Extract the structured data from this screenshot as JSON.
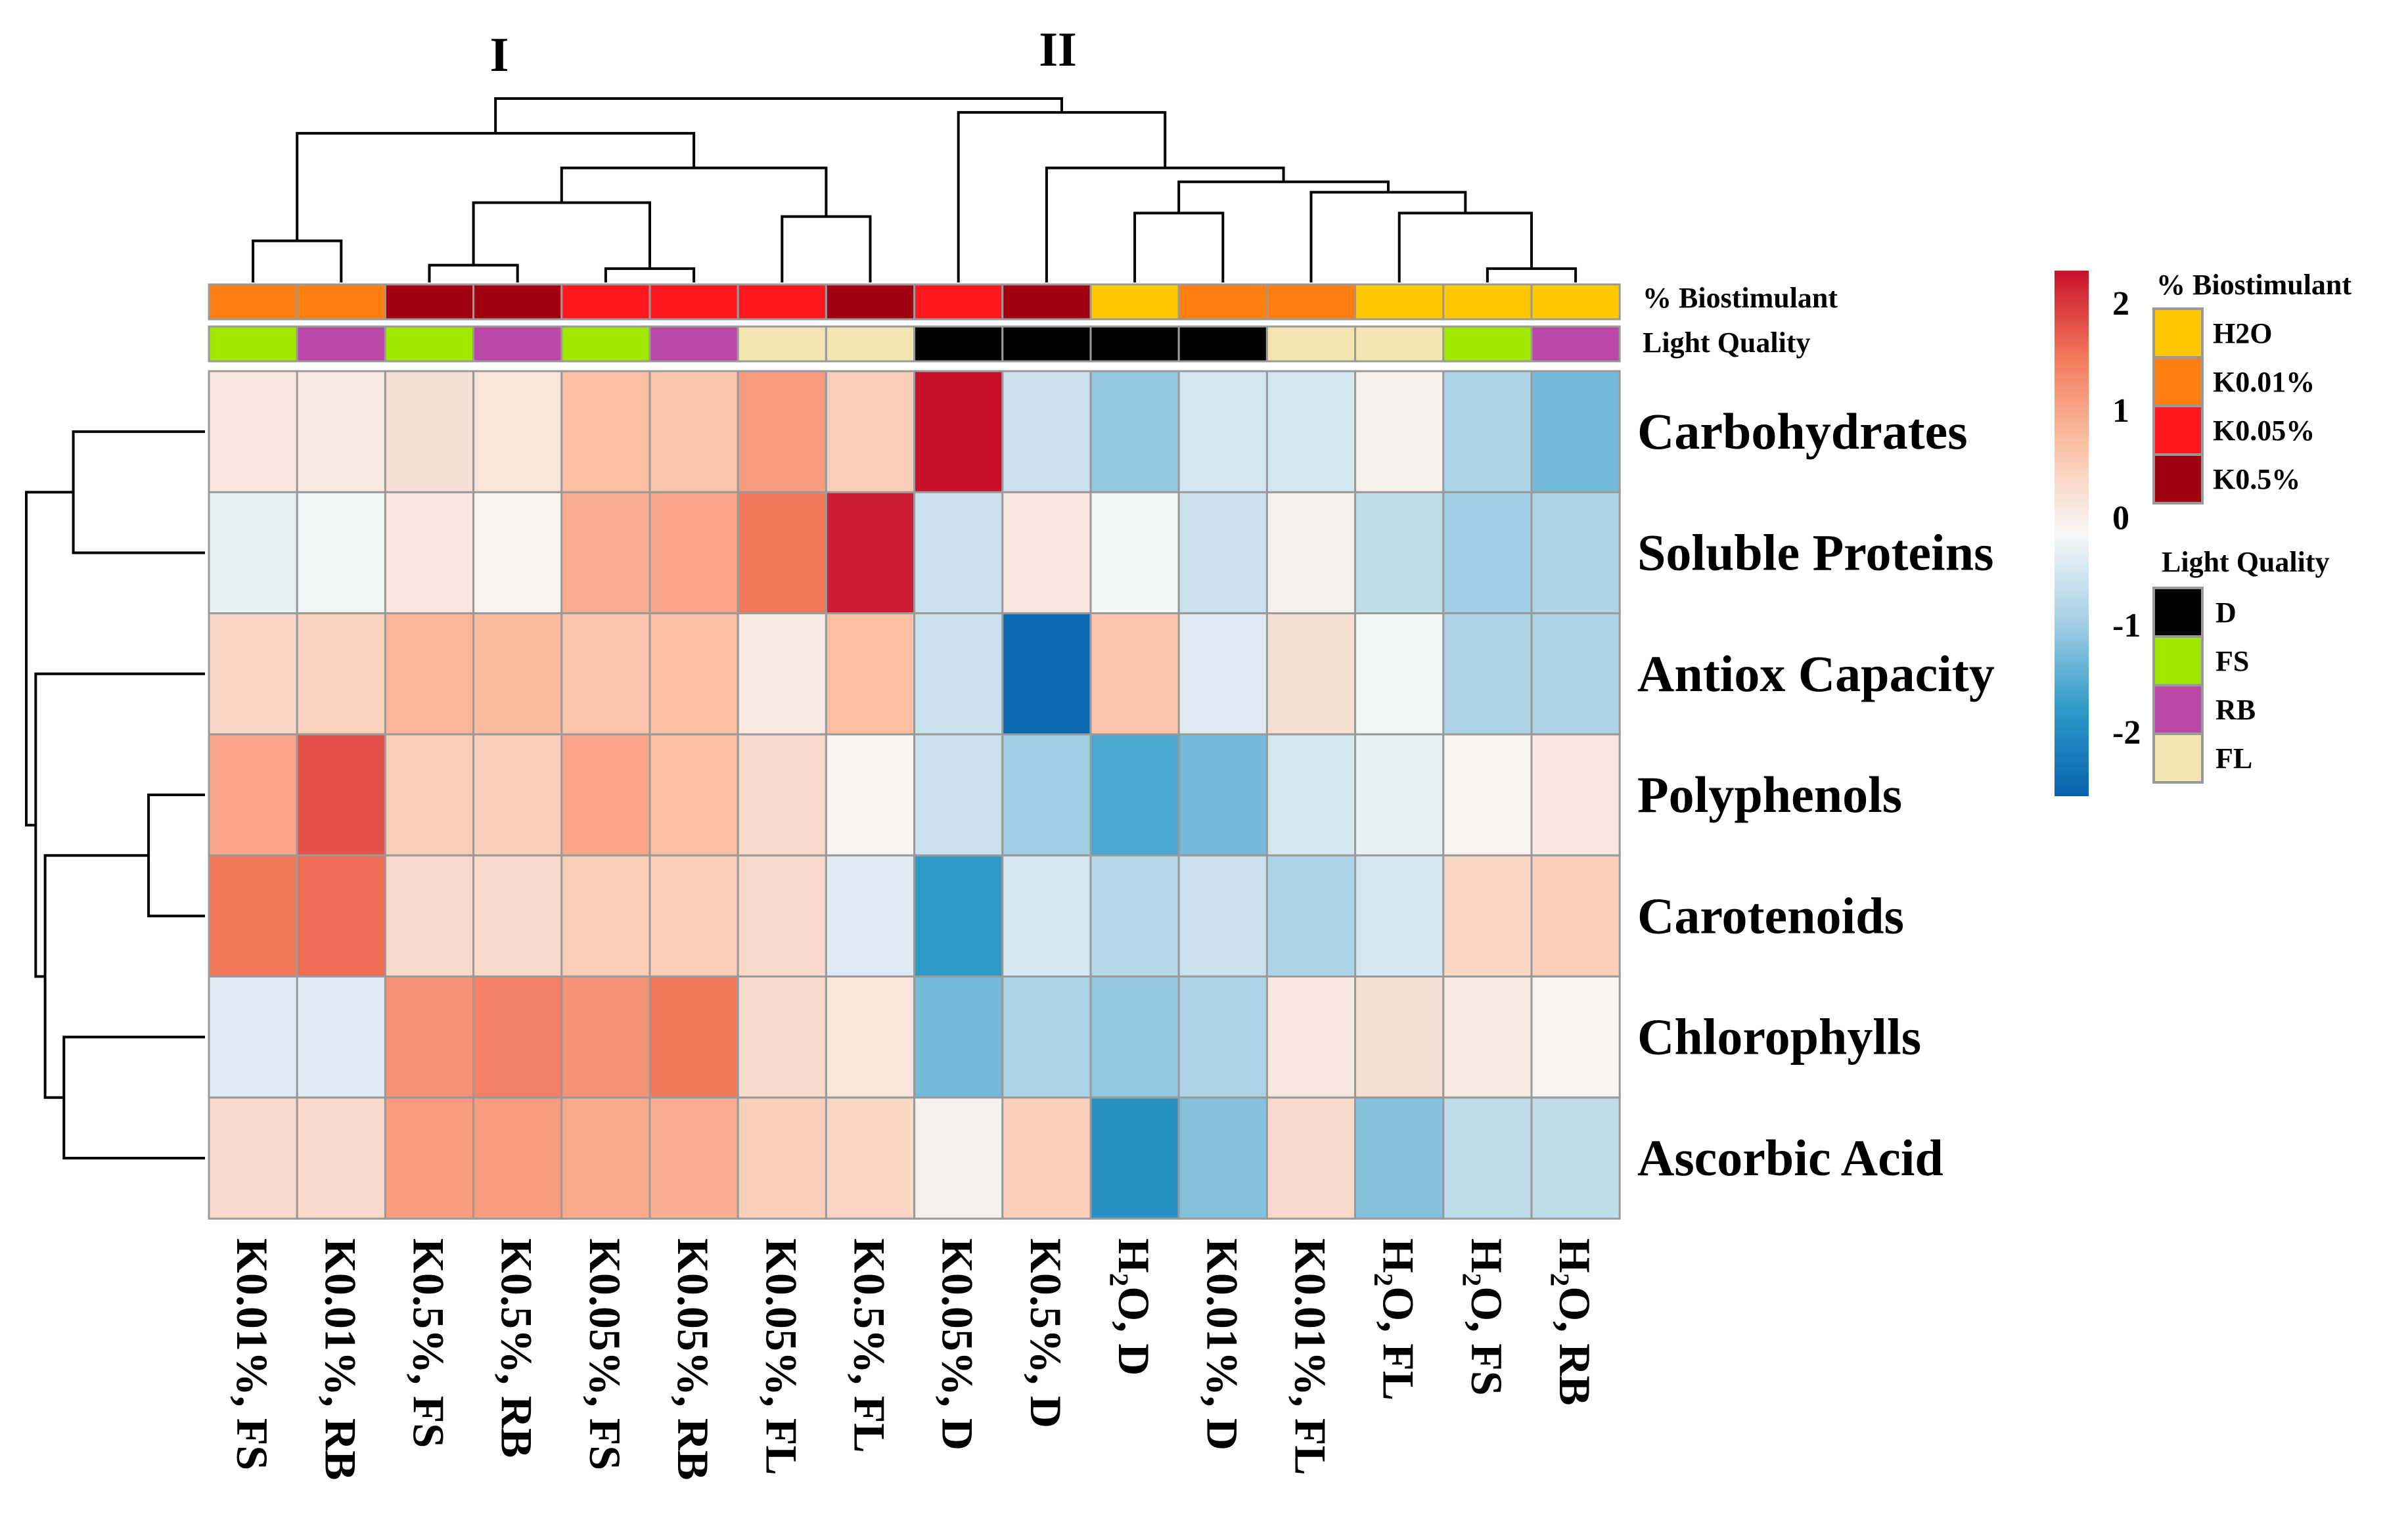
{
  "chart_data": {
    "type": "heatmap",
    "title": "",
    "cluster_labels": [
      "I",
      "II"
    ],
    "columns": [
      "K0.01%, FS",
      "K0.01%, RB",
      "K0.5%, FS",
      "K0.5%, RB",
      "K0.05%, FS",
      "K0.05%, RB",
      "K0.05%, FL",
      "K0.5%, FL",
      "K0.05%, D",
      "K0.5%, D",
      "H2O, D",
      "K0.01%, D",
      "K0.01%, FL",
      "H2O, FL",
      "H2O, FS",
      "H2O, RB"
    ],
    "rows": [
      "Carbohydrates",
      "Soluble Proteins",
      "Antiox Capacity",
      "Polyphenols",
      "Carotenoids",
      "Chlorophylls",
      "Ascorbic Acid"
    ],
    "values": [
      [
        0.1,
        0.05,
        0.2,
        0.15,
        0.7,
        0.6,
        1.1,
        0.5,
        2.3,
        -0.6,
        -1.1,
        -0.5,
        -0.5,
        -0.05,
        -0.9,
        -1.3
      ],
      [
        -0.3,
        -0.2,
        0.1,
        -0.1,
        0.9,
        1.0,
        1.5,
        2.2,
        -0.6,
        0.1,
        -0.2,
        -0.6,
        -0.05,
        -0.7,
        -1.0,
        -0.9
      ],
      [
        0.35,
        0.4,
        0.8,
        0.75,
        0.6,
        0.7,
        0.05,
        0.7,
        -0.6,
        -2.5,
        0.6,
        -0.4,
        0.2,
        -0.2,
        -0.9,
        -0.9
      ],
      [
        1.0,
        1.8,
        0.5,
        0.45,
        1.0,
        0.7,
        0.3,
        -0.1,
        -0.6,
        -1.0,
        -1.6,
        -1.3,
        -0.5,
        -0.3,
        -0.1,
        0.1
      ],
      [
        1.5,
        1.6,
        0.3,
        0.3,
        0.5,
        0.5,
        0.3,
        -0.4,
        -1.8,
        -0.5,
        -0.8,
        -0.6,
        -0.9,
        -0.5,
        0.35,
        0.45
      ],
      [
        -0.4,
        -0.4,
        1.2,
        1.4,
        1.2,
        1.5,
        0.3,
        0.15,
        -1.3,
        -0.9,
        -1.1,
        -0.9,
        0.1,
        0.2,
        0.05,
        -0.1
      ],
      [
        0.3,
        0.3,
        1.1,
        1.1,
        0.95,
        0.9,
        0.45,
        0.35,
        -0.05,
        0.45,
        -1.9,
        -1.2,
        0.3,
        -1.2,
        -0.7,
        -0.7
      ]
    ],
    "column_annotations": {
      "biostimulant": [
        "K0.01%",
        "K0.01%",
        "K0.5%",
        "K0.5%",
        "K0.05%",
        "K0.05%",
        "K0.05%",
        "K0.5%",
        "K0.05%",
        "K0.5%",
        "H2O",
        "K0.01%",
        "K0.01%",
        "H2O",
        "H2O",
        "H2O"
      ],
      "light_quality": [
        "FS",
        "RB",
        "FS",
        "RB",
        "FS",
        "RB",
        "FL",
        "FL",
        "D",
        "D",
        "D",
        "D",
        "FL",
        "FL",
        "FS",
        "RB"
      ]
    },
    "annotation_track_labels": [
      "% Biostimulant",
      "Light Quality"
    ],
    "color_scale": {
      "ticks": [
        2,
        1,
        0,
        -1,
        -2
      ],
      "range": [
        -2.6,
        2.3
      ],
      "colors": [
        "#0662ad",
        "#2f9ac8",
        "#a6d0e6",
        "#f7f7f7",
        "#fbc2a6",
        "#f47a5c",
        "#c8102a"
      ]
    },
    "legend": {
      "biostimulant": {
        "title": "% Biostimulant",
        "items": [
          {
            "label": "H2O",
            "color": "#ffc800"
          },
          {
            "label": "K0.01%",
            "color": "#ff8010"
          },
          {
            "label": "K0.05%",
            "color": "#ff1820"
          },
          {
            "label": "K0.5%",
            "color": "#a00010"
          }
        ]
      },
      "light_quality": {
        "title": "Light Quality",
        "items": [
          {
            "label": "D",
            "color": "#000000"
          },
          {
            "label": "FS",
            "color": "#a0e800"
          },
          {
            "label": "RB",
            "color": "#bb48a8"
          },
          {
            "label": "FL",
            "color": "#f4e4b0"
          }
        ]
      }
    },
    "column_dendrogram": [
      [
        0,
        1,
        0.12
      ],
      [
        2,
        3,
        0.05
      ],
      [
        4,
        5,
        0.04
      ],
      [
        -2,
        -3,
        0.23
      ],
      [
        6,
        7,
        0.19
      ],
      [
        -4,
        -5,
        0.33
      ],
      [
        -1,
        -6,
        0.43
      ],
      [
        14,
        15,
        0.04
      ],
      [
        13,
        -8,
        0.2
      ],
      [
        12,
        -9,
        0.26
      ],
      [
        10,
        11,
        0.2
      ],
      [
        -11,
        -10,
        0.29
      ],
      [
        9,
        -12,
        0.33
      ],
      [
        8,
        -13,
        0.49
      ],
      [
        -7,
        -14,
        0.53
      ]
    ],
    "row_dendrogram": [
      [
        0,
        1,
        0.7
      ],
      [
        3,
        4,
        0.3
      ],
      [
        5,
        6,
        0.75
      ],
      [
        -2,
        -3,
        0.85
      ],
      [
        2,
        -4,
        0.9
      ],
      [
        -1,
        -5,
        0.95
      ]
    ]
  }
}
